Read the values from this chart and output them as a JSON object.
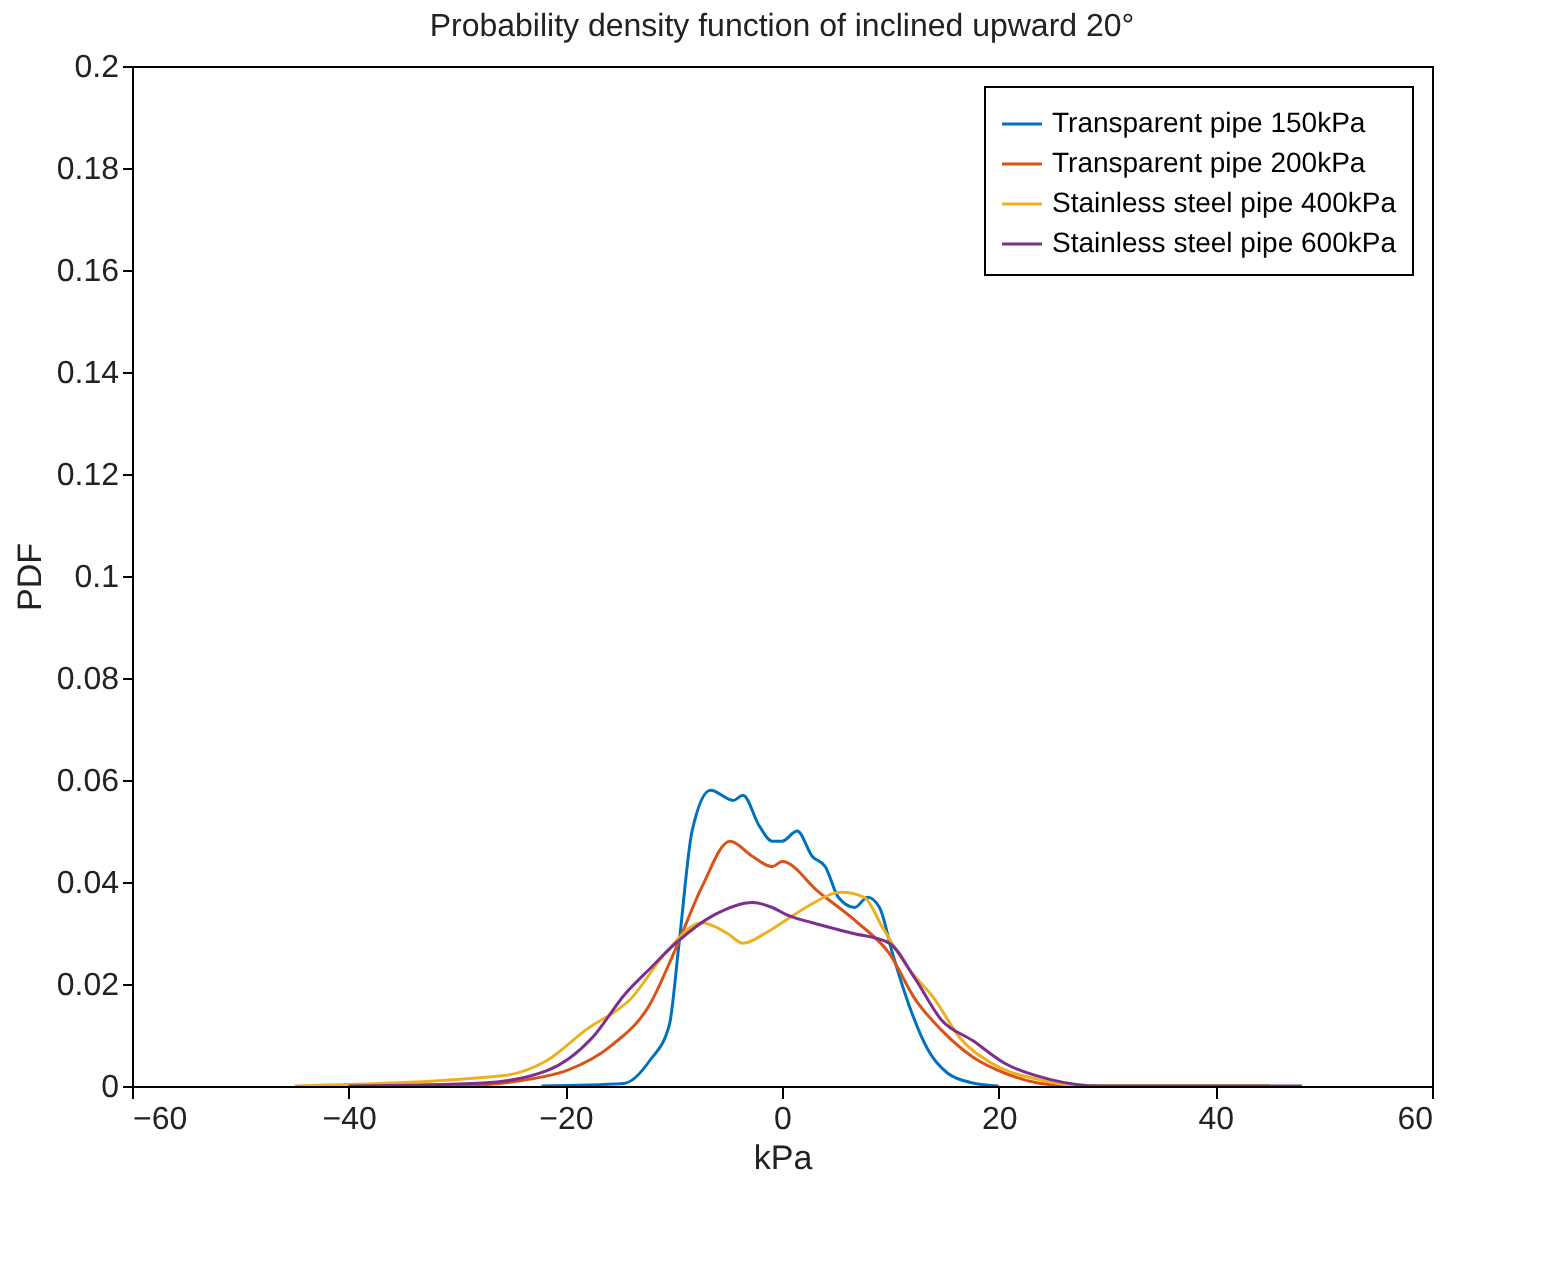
{
  "chart_data": {
    "type": "line",
    "title": "Probability density function of inclined upward 20°",
    "xlabel": "kPa",
    "ylabel": "PDF",
    "xlim": [
      -60,
      60
    ],
    "xticks": [
      -60,
      -40,
      -20,
      0,
      20,
      40,
      60
    ],
    "ylim": [
      0,
      0.2
    ],
    "yticks": [
      0,
      0.02,
      0.04,
      0.06,
      0.08,
      0.1,
      0.12,
      0.14,
      0.16,
      0.18,
      0.2
    ],
    "grid": false,
    "legend": "top right",
    "marker": "none",
    "line_style": "solid",
    "series": [
      {
        "name": "Transparent pipe 150kPa",
        "color": "#0072bd",
        "x": [
          -22.2,
          -14.6,
          -12.2,
          -10.4,
          -9.5,
          -8.3,
          -6.6,
          -4.5,
          -3.6,
          -2.1,
          -0.9,
          0,
          1.4,
          2.8,
          4,
          5.2,
          6.7,
          7.9,
          9,
          10.2,
          11.7,
          13.5,
          15.3,
          17.6,
          20
        ],
        "values": [
          0,
          0.0005,
          0.005,
          0.012,
          0.028,
          0.05,
          0.058,
          0.056,
          0.057,
          0.051,
          0.048,
          0.048,
          0.05,
          0.045,
          0.043,
          0.037,
          0.035,
          0.037,
          0.035,
          0.026,
          0.016,
          0.007,
          0.0025,
          0.0006,
          0
        ]
      },
      {
        "name": "Transparent pipe 200kPa",
        "color": "#d95319",
        "x": [
          -40,
          -30.5,
          -23.4,
          -19.9,
          -15.7,
          -12.2,
          -9.8,
          -7.4,
          -4.8,
          -2.7,
          -0.9,
          0,
          3.4,
          7,
          9.9,
          12.3,
          14.7,
          17.6,
          20.6,
          23.6,
          27,
          45
        ],
        "values": [
          0,
          0,
          0.0013,
          0.003,
          0.008,
          0.016,
          0.027,
          0.039,
          0.048,
          0.045,
          0.043,
          0.044,
          0.038,
          0.032,
          0.026,
          0.017,
          0.011,
          0.0057,
          0.0025,
          0.0006,
          0,
          0
        ]
      },
      {
        "name": "Stainless steel pipe 400kPa",
        "color": "#edb120",
        "x": [
          -45,
          -25.8,
          -21.7,
          -18.1,
          -14,
          -10.4,
          -7.4,
          -5.1,
          -3.6,
          -1.5,
          0,
          2.2,
          5.5,
          7.6,
          9.3,
          11.7,
          14.1,
          16.4,
          19.4,
          23.6,
          28.3,
          45
        ],
        "values": [
          0,
          0.002,
          0.005,
          0.011,
          0.017,
          0.027,
          0.032,
          0.03,
          0.028,
          0.03,
          0.032,
          0.035,
          0.038,
          0.037,
          0.031,
          0.023,
          0.017,
          0.0095,
          0.0044,
          0.0013,
          0,
          0
        ]
      },
      {
        "name": "Stainless steel pipe 600kPa",
        "color": "#7e2f8e",
        "x": [
          -40,
          -27.6,
          -21.7,
          -17.5,
          -14.5,
          -12.2,
          -9.8,
          -6.3,
          -2.7,
          -0.9,
          0.5,
          2.8,
          6.4,
          9.9,
          12.3,
          14.7,
          17.6,
          20.6,
          24.7,
          29.5,
          48
        ],
        "values": [
          0,
          0.0006,
          0.003,
          0.0095,
          0.018,
          0.023,
          0.028,
          0.0335,
          0.036,
          0.035,
          0.0335,
          0.032,
          0.03,
          0.028,
          0.021,
          0.013,
          0.0089,
          0.0044,
          0.0013,
          0,
          0
        ]
      }
    ]
  }
}
